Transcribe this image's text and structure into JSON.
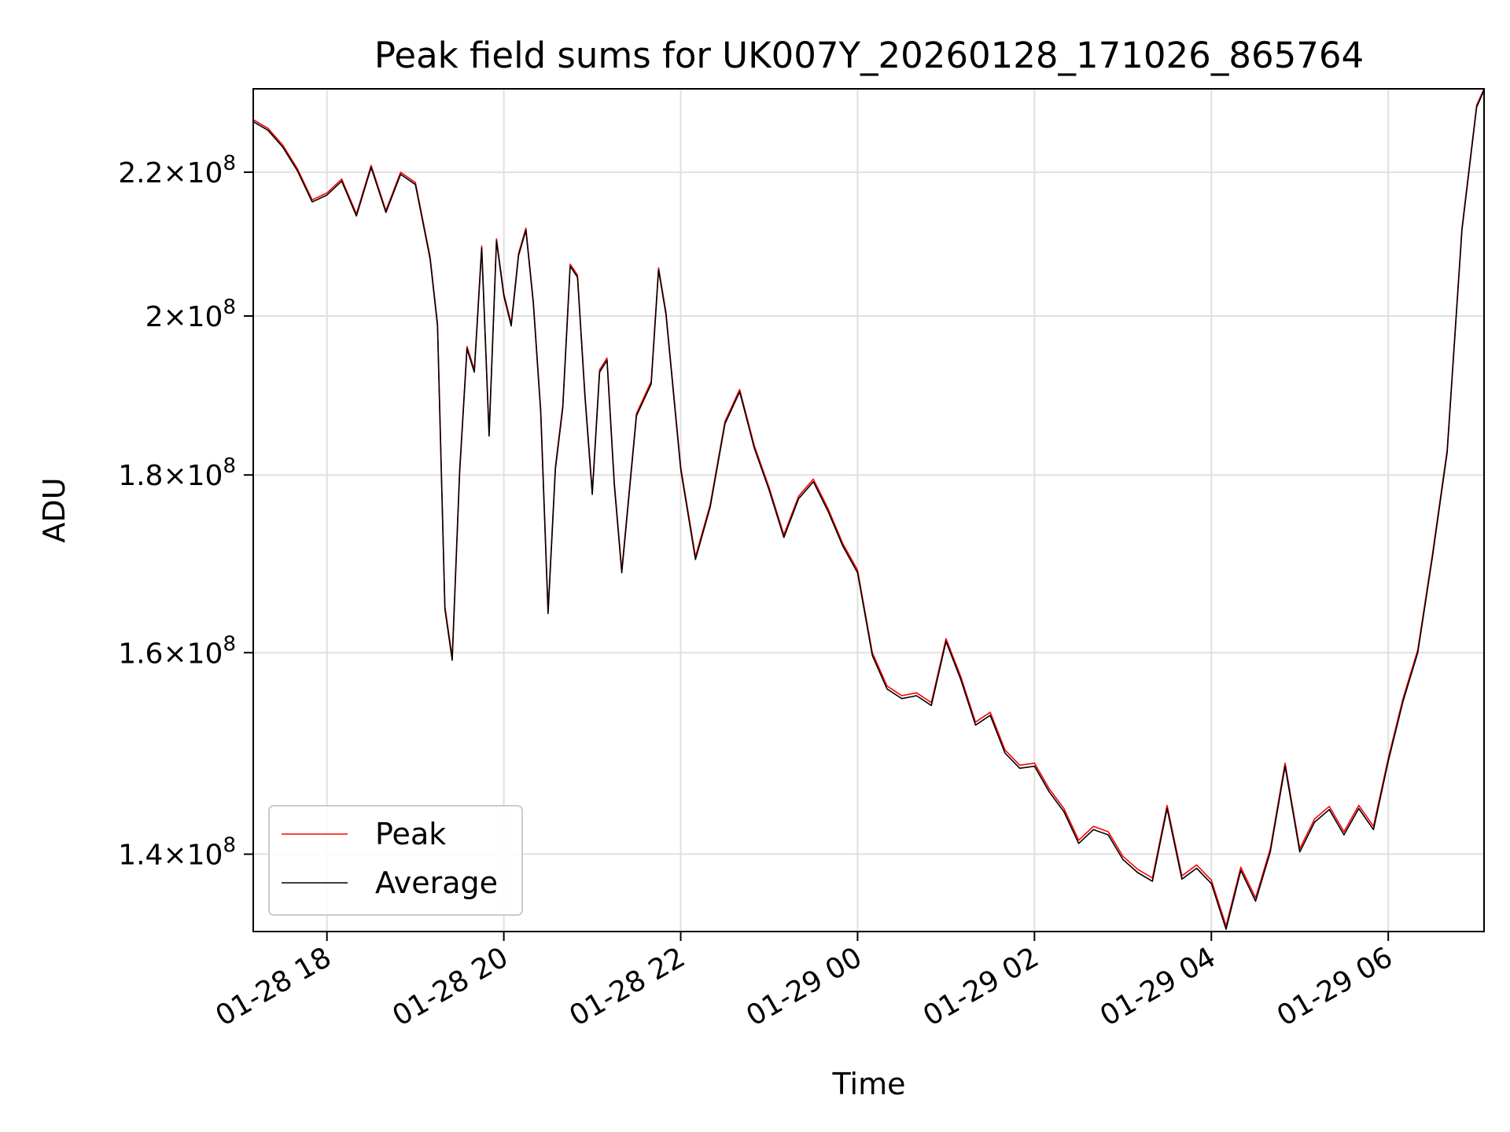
{
  "chart_data": {
    "type": "line",
    "title": "Peak field sums for UK007Y_20260128_171026_865764",
    "xlabel": "Time",
    "ylabel": "ADU",
    "yscale": "log",
    "grid": true,
    "legend_position": "lower-left",
    "xlim": [
      "2026-01-28T17:10",
      "2026-01-29T07:05"
    ],
    "ylim": [
      133000000,
      232500000
    ],
    "x_ticks": [
      {
        "value": "2026-01-28T18:00",
        "label": "01-28 18"
      },
      {
        "value": "2026-01-28T20:00",
        "label": "01-28 20"
      },
      {
        "value": "2026-01-28T22:00",
        "label": "01-28 22"
      },
      {
        "value": "2026-01-29T00:00",
        "label": "01-29 00"
      },
      {
        "value": "2026-01-29T02:00",
        "label": "01-29 02"
      },
      {
        "value": "2026-01-29T04:00",
        "label": "01-29 04"
      },
      {
        "value": "2026-01-29T06:00",
        "label": "01-29 06"
      }
    ],
    "y_ticks": [
      {
        "value": 140000000,
        "mantissa": "1.4",
        "times": "×",
        "base": "10",
        "exp": "8"
      },
      {
        "value": 160000000,
        "mantissa": "1.6",
        "times": "×",
        "base": "10",
        "exp": "8"
      },
      {
        "value": 180000000,
        "mantissa": "1.8",
        "times": "×",
        "base": "10",
        "exp": "8"
      },
      {
        "value": 200000000,
        "mantissa": "2",
        "times": "×",
        "base": "10",
        "exp": "8"
      },
      {
        "value": 220000000,
        "mantissa": "2.2",
        "times": "×",
        "base": "10",
        "exp": "8"
      }
    ],
    "x": [
      "2026-01-28T17:10",
      "2026-01-28T17:20",
      "2026-01-28T17:30",
      "2026-01-28T17:40",
      "2026-01-28T17:50",
      "2026-01-28T18:00",
      "2026-01-28T18:10",
      "2026-01-28T18:20",
      "2026-01-28T18:30",
      "2026-01-28T18:40",
      "2026-01-28T18:50",
      "2026-01-28T19:00",
      "2026-01-28T19:10",
      "2026-01-28T19:15",
      "2026-01-28T19:20",
      "2026-01-28T19:25",
      "2026-01-28T19:30",
      "2026-01-28T19:35",
      "2026-01-28T19:40",
      "2026-01-28T19:45",
      "2026-01-28T19:50",
      "2026-01-28T19:55",
      "2026-01-28T20:00",
      "2026-01-28T20:05",
      "2026-01-28T20:10",
      "2026-01-28T20:15",
      "2026-01-28T20:20",
      "2026-01-28T20:25",
      "2026-01-28T20:30",
      "2026-01-28T20:35",
      "2026-01-28T20:40",
      "2026-01-28T20:45",
      "2026-01-28T20:50",
      "2026-01-28T20:55",
      "2026-01-28T21:00",
      "2026-01-28T21:05",
      "2026-01-28T21:10",
      "2026-01-28T21:15",
      "2026-01-28T21:20",
      "2026-01-28T21:30",
      "2026-01-28T21:40",
      "2026-01-28T21:45",
      "2026-01-28T21:50",
      "2026-01-28T22:00",
      "2026-01-28T22:10",
      "2026-01-28T22:20",
      "2026-01-28T22:30",
      "2026-01-28T22:40",
      "2026-01-28T22:50",
      "2026-01-28T23:00",
      "2026-01-28T23:10",
      "2026-01-28T23:20",
      "2026-01-28T23:30",
      "2026-01-28T23:40",
      "2026-01-28T23:50",
      "2026-01-29T00:00",
      "2026-01-29T00:10",
      "2026-01-29T00:20",
      "2026-01-29T00:30",
      "2026-01-29T00:40",
      "2026-01-29T00:50",
      "2026-01-29T01:00",
      "2026-01-29T01:10",
      "2026-01-29T01:20",
      "2026-01-29T01:30",
      "2026-01-29T01:40",
      "2026-01-29T01:50",
      "2026-01-29T02:00",
      "2026-01-29T02:10",
      "2026-01-29T02:20",
      "2026-01-29T02:30",
      "2026-01-29T02:40",
      "2026-01-29T02:50",
      "2026-01-29T03:00",
      "2026-01-29T03:10",
      "2026-01-29T03:20",
      "2026-01-29T03:30",
      "2026-01-29T03:40",
      "2026-01-29T03:50",
      "2026-01-29T04:00",
      "2026-01-29T04:10",
      "2026-01-29T04:20",
      "2026-01-29T04:30",
      "2026-01-29T04:40",
      "2026-01-29T04:50",
      "2026-01-29T05:00",
      "2026-01-29T05:10",
      "2026-01-29T05:20",
      "2026-01-29T05:30",
      "2026-01-29T05:40",
      "2026-01-29T05:50",
      "2026-01-29T06:00",
      "2026-01-29T06:10",
      "2026-01-29T06:20",
      "2026-01-29T06:30",
      "2026-01-29T06:40",
      "2026-01-29T06:50",
      "2026-01-29T07:00",
      "2026-01-29T07:05"
    ],
    "series": [
      {
        "name": "Peak",
        "color": "#ff0000",
        "values": [
          227800000,
          226500000,
          224000000,
          220500000,
          216000000,
          217000000,
          219000000,
          214000000,
          221000000,
          214500000,
          220000000,
          218500000,
          208000000,
          199000000,
          165000000,
          159500000,
          180500000,
          196000000,
          193000000,
          209500000,
          185000000,
          210500000,
          203000000,
          199000000,
          208500000,
          212000000,
          202000000,
          188000000,
          164500000,
          181000000,
          188500000,
          207000000,
          205500000,
          190000000,
          178000000,
          193000000,
          194500000,
          179000000,
          169000000,
          187500000,
          191500000,
          206500000,
          200500000,
          181000000,
          170500000,
          176500000,
          186500000,
          190500000,
          183500000,
          178500000,
          173000000,
          177500000,
          179500000,
          176000000,
          172000000,
          169000000,
          160000000,
          156500000,
          155500000,
          155800000,
          154800000,
          161500000,
          157500000,
          152800000,
          153800000,
          150000000,
          148500000,
          148700000,
          146200000,
          144300000,
          141300000,
          142600000,
          142100000,
          139800000,
          138600000,
          137800000,
          144600000,
          138000000,
          139000000,
          137600000,
          133500000,
          138800000,
          136000000,
          140500000,
          148700000,
          140500000,
          143300000,
          144500000,
          142100000,
          144600000,
          142600000,
          149200000,
          155200000,
          160300000,
          170800000,
          183000000,
          212000000,
          230000000,
          232500000
        ]
      },
      {
        "name": "Average",
        "color": "#000000",
        "values": [
          227500000,
          226200000,
          223700000,
          220200000,
          215700000,
          216700000,
          218700000,
          213700000,
          220700000,
          214200000,
          219700000,
          218200000,
          207700000,
          198700000,
          164700000,
          159200000,
          180200000,
          195700000,
          192700000,
          209200000,
          184700000,
          210200000,
          202700000,
          198700000,
          208200000,
          211700000,
          201700000,
          187700000,
          164200000,
          180700000,
          188200000,
          206700000,
          205200000,
          189700000,
          177700000,
          192700000,
          194200000,
          178700000,
          168700000,
          187200000,
          191200000,
          206200000,
          200200000,
          180700000,
          170200000,
          176200000,
          186200000,
          190200000,
          183200000,
          178200000,
          172700000,
          177200000,
          179200000,
          175700000,
          171700000,
          168700000,
          159700000,
          156200000,
          155200000,
          155500000,
          154500000,
          161200000,
          157200000,
          152500000,
          153500000,
          149700000,
          148200000,
          148400000,
          145900000,
          144000000,
          141000000,
          142300000,
          141800000,
          139500000,
          138300000,
          137500000,
          144300000,
          137700000,
          138700000,
          137300000,
          133200000,
          138500000,
          135700000,
          140200000,
          148400000,
          140200000,
          143000000,
          144200000,
          141800000,
          144300000,
          142300000,
          148900000,
          154900000,
          160000000,
          170500000,
          182700000,
          211700000,
          229700000,
          232300000
        ]
      }
    ]
  }
}
